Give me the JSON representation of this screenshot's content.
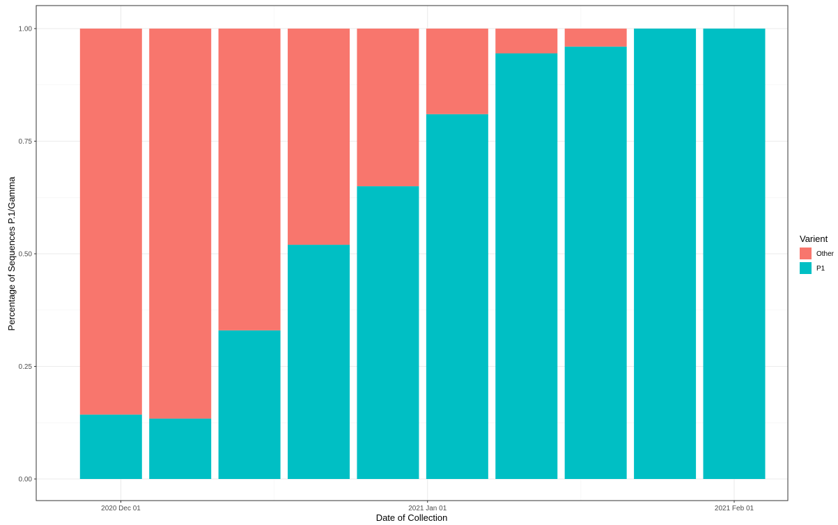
{
  "chart_data": {
    "type": "bar",
    "stacked": true,
    "xlabel": "Date of Collection",
    "ylabel": "Percentage of Sequences P.1/Gamma",
    "ylim": [
      0,
      1
    ],
    "y_ticks": [
      "0.00",
      "0.25",
      "0.50",
      "0.75",
      "1.00"
    ],
    "x_ticks": [
      {
        "label": "2020 Dec 01",
        "date": "2020-12-01"
      },
      {
        "label": "2021 Jan 01",
        "date": "2021-01-01"
      },
      {
        "label": "2021 Feb 01",
        "date": "2021-02-01"
      }
    ],
    "categories": [
      "2020-11-30",
      "2020-12-07",
      "2020-12-14",
      "2020-12-21",
      "2020-12-28",
      "2021-01-04",
      "2021-01-11",
      "2021-01-18",
      "2021-01-25",
      "2021-02-01"
    ],
    "series": [
      {
        "name": "P1",
        "color": "#00BFC4",
        "values": [
          0.143,
          0.134,
          0.33,
          0.52,
          0.65,
          0.81,
          0.945,
          0.96,
          1.0,
          1.0
        ]
      },
      {
        "name": "Other",
        "color": "#F8766D",
        "values": [
          0.857,
          0.866,
          0.67,
          0.48,
          0.35,
          0.19,
          0.055,
          0.04,
          0.0,
          0.0
        ]
      }
    ],
    "legend": {
      "title": "Varient",
      "position": "right",
      "items": [
        {
          "label": "Other",
          "color": "#F8766D"
        },
        {
          "label": "P1",
          "color": "#00BFC4"
        }
      ]
    },
    "grid": true
  }
}
